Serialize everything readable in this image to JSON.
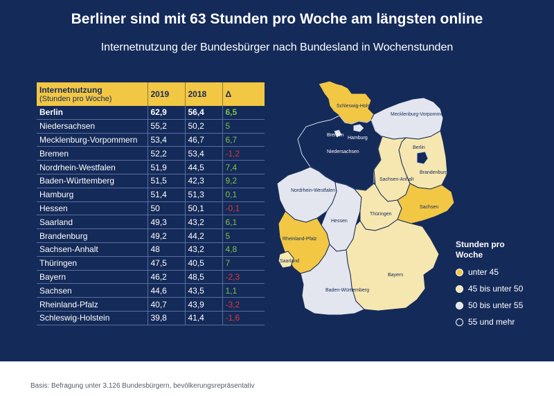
{
  "title": "Berliner sind mit 63 Stunden pro Woche am längsten online",
  "subtitle": "Internetnutzung der Bundesbürger nach Bundesland in Wochenstunden",
  "footer": "Basis: Befragung unter 3.126 Bundesbürgern, bevölkerungsrepräsentativ",
  "colors": {
    "background": "#142a59",
    "accent": "#f2c744",
    "unter45": "#f2c744",
    "45bis50": "#f6e7b0",
    "50bis55": "#e3e6ef",
    "55mehr": "#142a59",
    "positive": "#7fc24a",
    "negative": "#e0353a"
  },
  "chart_data": {
    "type": "table",
    "columns": {
      "label": "Internetnutzung",
      "label_sub": "(Stunden pro Woche)",
      "y2019": "2019",
      "y2018": "2018",
      "delta": "Δ"
    },
    "rows": [
      {
        "state": "Berlin",
        "v2019": "62,9",
        "v2018": "56,4",
        "delta": "6,5"
      },
      {
        "state": "Niedersachsen",
        "v2019": "55,2",
        "v2018": "50,2",
        "delta": "5"
      },
      {
        "state": "Mecklenburg-Vorpommern",
        "v2019": "53,4",
        "v2018": "46,7",
        "delta": "6,7"
      },
      {
        "state": "Bremen",
        "v2019": "52,2",
        "v2018": "53,4",
        "delta": "-1,2"
      },
      {
        "state": "Nordrhein-Westfalen",
        "v2019": "51,9",
        "v2018": "44,5",
        "delta": "7,4"
      },
      {
        "state": "Baden-Württemberg",
        "v2019": "51,5",
        "v2018": "42,3",
        "delta": "9,2"
      },
      {
        "state": "Hamburg",
        "v2019": "51,4",
        "v2018": "51,3",
        "delta": "0,1"
      },
      {
        "state": "Hessen",
        "v2019": "50",
        "v2018": "50,1",
        "delta": "-0,1"
      },
      {
        "state": "Saarland",
        "v2019": "49,3",
        "v2018": "43,2",
        "delta": "6,1"
      },
      {
        "state": "Brandenburg",
        "v2019": "49,2",
        "v2018": "44,2",
        "delta": "5"
      },
      {
        "state": "Sachsen-Anhalt",
        "v2019": "48",
        "v2018": "43,2",
        "delta": "4,8"
      },
      {
        "state": "Thüringen",
        "v2019": "47,5",
        "v2018": "40,5",
        "delta": "7"
      },
      {
        "state": "Bayern",
        "v2019": "46,2",
        "v2018": "48,5",
        "delta": "-2,3"
      },
      {
        "state": "Sachsen",
        "v2019": "44,6",
        "v2018": "43,5",
        "delta": "1,1"
      },
      {
        "state": "Rheinland-Pfalz",
        "v2019": "40,7",
        "v2018": "43,9",
        "delta": "-3,2"
      },
      {
        "state": "Schleswig-Holstein",
        "v2019": "39,8",
        "v2018": "41,4",
        "delta": "-1,6"
      }
    ],
    "map_labels": {
      "sh": "Schleswig-Holstein",
      "mv": "Mecklenburg-Vorpommern",
      "hh": "Hamburg",
      "hb": "Bremen",
      "ni": "Niedersachsen",
      "be": "Berlin",
      "bb": "Brandenburg",
      "st": "Sachsen-Anhalt",
      "nw": "Nordrhein-Westfalen",
      "he": "Hessen",
      "th": "Thüringen",
      "sn": "Sachsen",
      "rp": "Rheinland-Pfalz",
      "sl": "Saarland",
      "by": "Bayern",
      "bw": "Baden-Württemberg"
    },
    "legend": {
      "title": "Stunden pro Woche",
      "items": [
        {
          "label": "unter 45",
          "color": "#f2c744"
        },
        {
          "label": "45 bis unter 50",
          "color": "#f6e7b0"
        },
        {
          "label": "50 bis unter 55",
          "color": "#e3e6ef"
        },
        {
          "label": "55 und mehr",
          "color": "#142a59"
        }
      ]
    }
  }
}
